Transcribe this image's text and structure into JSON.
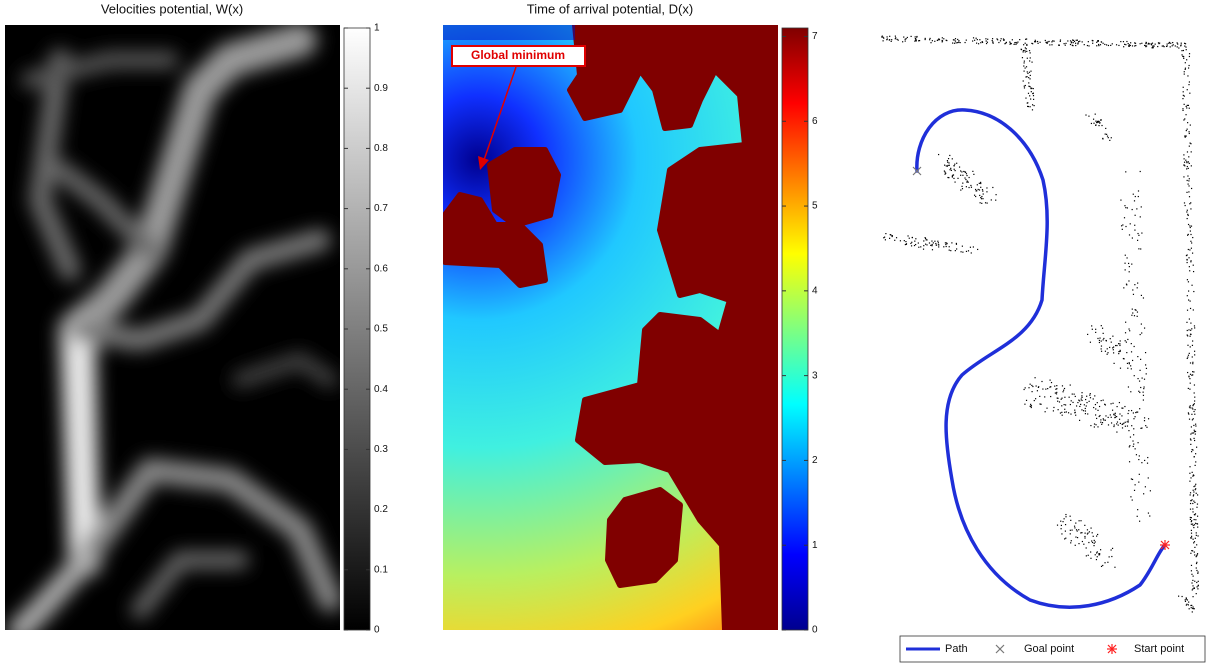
{
  "chart_data": [
    {
      "type": "heatmap",
      "title": "Velocities potential, W(x)",
      "colormap": "gray",
      "ylim": [
        0,
        1
      ],
      "yticks": [
        0,
        0.1,
        0.2,
        0.3,
        0.4,
        0.5,
        0.6,
        0.7,
        0.8,
        0.9,
        1
      ]
    },
    {
      "type": "heatmap",
      "title": "Time of arrival potential, D(x)",
      "colormap": "jet",
      "ylim": [
        0,
        7.1
      ],
      "yticks": [
        0,
        1,
        2,
        3,
        4,
        5,
        6,
        7
      ],
      "annotation": "Global minimum"
    },
    {
      "type": "map",
      "series": [
        {
          "name": "Path",
          "color": "#1f2fd9"
        },
        {
          "name": "Goal point",
          "color": "#777777"
        },
        {
          "name": "Start point",
          "color": "#ff2020"
        }
      ]
    }
  ]
}
